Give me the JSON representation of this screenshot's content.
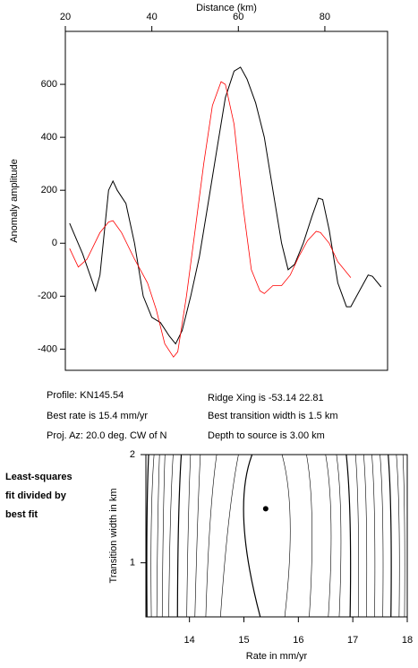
{
  "chart_data": [
    {
      "type": "line",
      "xlabel": "Distance (km)",
      "ylabel": "Anomaly amplitude",
      "xlim": [
        20,
        94.5
      ],
      "xticks": [
        20,
        40,
        60,
        80
      ],
      "ylim": [
        -480,
        800
      ],
      "yticks": [
        -400,
        -200,
        0,
        200,
        400,
        600
      ],
      "series": [
        {
          "color": "#000000",
          "x": [
            21,
            24,
            27,
            28,
            30,
            31,
            32,
            34,
            36,
            38,
            40,
            42,
            44,
            45.5,
            47,
            49,
            51,
            53,
            55,
            57,
            59,
            60.5,
            62,
            64,
            66,
            68,
            70,
            71.5,
            73,
            75,
            77,
            78.5,
            79.5,
            81,
            83,
            85,
            86,
            88,
            90,
            91,
            93
          ],
          "values": [
            75,
            -40,
            -180,
            -120,
            200,
            235,
            200,
            150,
            0,
            -200,
            -280,
            -300,
            -350,
            -380,
            -330,
            -200,
            -50,
            150,
            350,
            550,
            650,
            665,
            620,
            530,
            400,
            200,
            0,
            -100,
            -80,
            0,
            100,
            170,
            165,
            50,
            -150,
            -240,
            -240,
            -180,
            -120,
            -125,
            -165
          ]
        },
        {
          "color": "#ff0000",
          "x": [
            21,
            23,
            25,
            28,
            30,
            31,
            33,
            36,
            39,
            41,
            43,
            45,
            46,
            48,
            50,
            52,
            54,
            56,
            57,
            59,
            61,
            63,
            65,
            66,
            68,
            70,
            72,
            74,
            76,
            78,
            79,
            81,
            83,
            86
          ],
          "values": [
            -20,
            -90,
            -60,
            40,
            80,
            85,
            40,
            -60,
            -150,
            -250,
            -380,
            -430,
            -410,
            -200,
            50,
            300,
            520,
            610,
            600,
            450,
            150,
            -100,
            -180,
            -190,
            -160,
            -160,
            -120,
            -50,
            10,
            45,
            40,
            0,
            -70,
            -130
          ]
        }
      ],
      "annotations": [
        "Profile: KN145.54",
        "Best rate is 15.4 mm/yr",
        "Proj. Az: 20.0 deg. CW of N",
        "Ridge Xing is -53.14 22.81",
        "Best transition width is 1.5 km",
        "Depth to source is   3.00 km"
      ]
    },
    {
      "type": "contour",
      "xlabel": "Rate in mm/yr",
      "ylabel": "Transition width in km",
      "xlim": [
        13.2,
        18
      ],
      "xticks": [
        14,
        15,
        16,
        17,
        18
      ],
      "ylim": [
        0.5,
        2
      ],
      "yticks": [
        1,
        2
      ],
      "title_lines": [
        "Least-squares",
        "fit divided by",
        "best fit"
      ],
      "best": [
        15.4,
        1.5
      ],
      "contour_y": [
        0.5,
        1.5,
        2
      ],
      "contours": [
        [
          13.22,
          13.22,
          13.25
        ],
        [
          13.3,
          13.3,
          13.35
        ],
        [
          13.4,
          13.42,
          13.45
        ],
        [
          13.5,
          13.52,
          13.55
        ],
        [
          13.62,
          13.65,
          13.7
        ],
        [
          13.78,
          13.8,
          13.85
        ],
        [
          13.95,
          13.98,
          14.02
        ],
        [
          14.1,
          14.15,
          14.2
        ],
        [
          14.3,
          14.38,
          14.5
        ],
        [
          14.57,
          14.72,
          14.9
        ],
        [
          15.3,
          15.0,
          15.15
        ],
        [
          15.75,
          15.85,
          15.7
        ],
        [
          16.2,
          16.25,
          16.15
        ],
        [
          16.55,
          16.6,
          16.5
        ],
        [
          16.75,
          16.78,
          16.7
        ],
        [
          16.95,
          16.95,
          16.88
        ],
        [
          17.1,
          17.1,
          17.05
        ],
        [
          17.25,
          17.25,
          17.2
        ],
        [
          17.4,
          17.4,
          17.35
        ],
        [
          17.55,
          17.55,
          17.5
        ],
        [
          17.7,
          17.7,
          17.65
        ],
        [
          17.85,
          17.85,
          17.8
        ],
        [
          17.95,
          17.95,
          17.92
        ]
      ]
    }
  ]
}
